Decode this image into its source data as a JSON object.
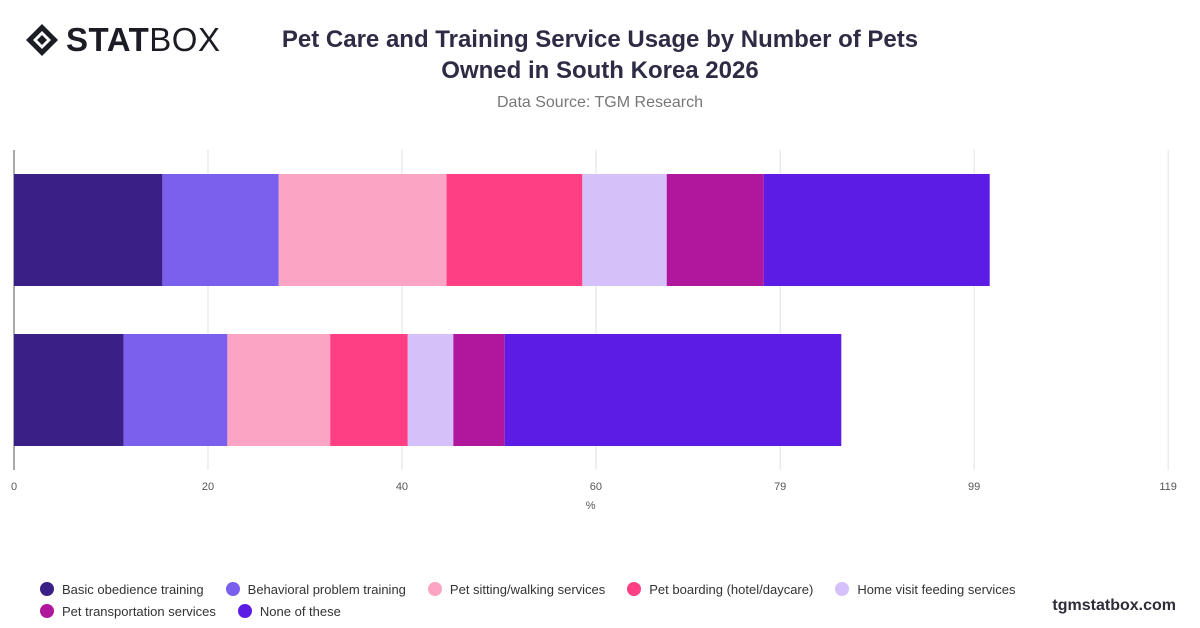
{
  "brand": {
    "bold": "STAT",
    "light": "BOX",
    "icon": "diamond-logo-icon"
  },
  "header": {
    "title": "Pet Care and Training Service Usage by Number of Pets Owned in South Korea 2026",
    "subtitle": "Data Source: TGM Research"
  },
  "footer": {
    "site": "tgmstatbox.com"
  },
  "colors": {
    "Basic obedience training": "#3a1f86",
    "Behavioral problem training": "#7b60ed",
    "Pet sitting/walking services": "#fca4c3",
    "Pet boarding (hotel/daycare)": "#ff3f84",
    "Home visit feeding services": "#d5c0fa",
    "Pet transportation services": "#b1179d",
    "None of these": "#5d1be6"
  },
  "chart_data": {
    "type": "bar",
    "orientation": "horizontal",
    "stacked": true,
    "categories": [
      "",
      ""
    ],
    "series": [
      {
        "name": "Basic obedience training",
        "values": [
          15.3,
          11.3
        ]
      },
      {
        "name": "Behavioral problem training",
        "values": [
          12.0,
          10.7
        ]
      },
      {
        "name": "Pet sitting/walking services",
        "values": [
          17.3,
          10.6
        ]
      },
      {
        "name": "Pet boarding (hotel/daycare)",
        "values": [
          14.0,
          8.0
        ]
      },
      {
        "name": "Home visit feeding services",
        "values": [
          8.7,
          4.7
        ]
      },
      {
        "name": "Pet transportation services",
        "values": [
          10.0,
          5.3
        ]
      },
      {
        "name": "None of these",
        "values": [
          23.3,
          34.7
        ]
      }
    ],
    "xticks": [
      "0",
      "20",
      "40",
      "60",
      "79",
      "99",
      "119"
    ],
    "xlim": [
      0,
      119.5
    ],
    "xlabel": "%",
    "grid": true,
    "legend_position": "bottom"
  }
}
